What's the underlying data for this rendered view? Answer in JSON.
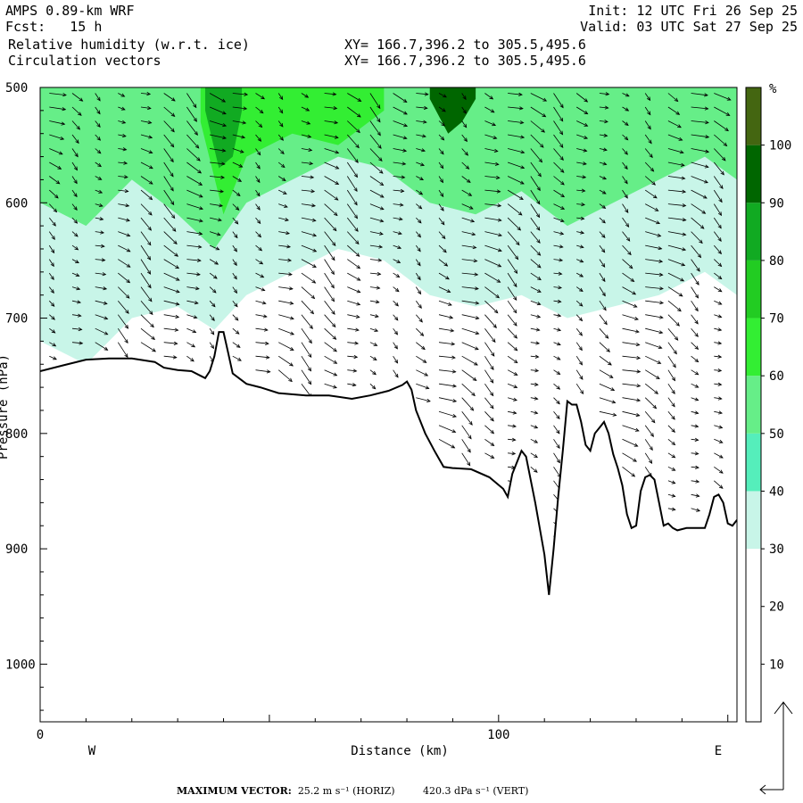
{
  "header": {
    "model": "AMPS 0.89-km WRF",
    "fcst": "Fcst:   15 h",
    "field1": "Relative humidity (w.r.t. ice)",
    "field2": "Circulation vectors",
    "init": "Init: 12 UTC Fri 26 Sep 25",
    "valid": "Valid: 03 UTC Sat 27 Sep 25",
    "xy1": "XY= 166.7,396.2 to 305.5,495.6",
    "xy2": "XY= 166.7,396.2 to 305.5,495.6"
  },
  "footer": {
    "max_vector_label": "MAXIMUM VECTOR:",
    "horiz": "25.2 m s⁻¹ (HORIZ)",
    "vert": "420.3 dPa s⁻¹ (VERT)"
  },
  "chart_data": {
    "type": "heatmap",
    "title": "Relative humidity (w.r.t. ice)",
    "xlabel": "Distance (km)",
    "ylabel": "Pressure (hPa)",
    "xlim": [
      0,
      152
    ],
    "ylim": [
      1050,
      500
    ],
    "x_ticks": [
      "0",
      "100"
    ],
    "x_end_labels": {
      "left": "W",
      "right": "E"
    },
    "y_ticks": [
      "500",
      "600",
      "700",
      "800",
      "900",
      "1000"
    ],
    "colorbar": {
      "unit": "%",
      "levels": [
        0,
        10,
        20,
        30,
        40,
        50,
        60,
        70,
        80,
        90,
        100
      ],
      "tick_labels": [
        "10",
        "20",
        "30",
        "40",
        "50",
        "60",
        "70",
        "80",
        "90",
        "100"
      ],
      "colors": [
        "#ffffff",
        "#ffffff",
        "#ffffff",
        "#c8f5e8",
        "#55eebb",
        "#66ee88",
        "#33ee33",
        "#22cc22",
        "#11aa22",
        "#006600",
        "#446611"
      ]
    },
    "terrain_pressure": [
      [
        0,
        746
      ],
      [
        5,
        741
      ],
      [
        10,
        736
      ],
      [
        15,
        735
      ],
      [
        20,
        735
      ],
      [
        25,
        738
      ],
      [
        27,
        743
      ],
      [
        30,
        745
      ],
      [
        33,
        746
      ],
      [
        35,
        750
      ],
      [
        36,
        752
      ],
      [
        37,
        746
      ],
      [
        38,
        733
      ],
      [
        39,
        712
      ],
      [
        40,
        712
      ],
      [
        41,
        730
      ],
      [
        42,
        748
      ],
      [
        45,
        757
      ],
      [
        48,
        760
      ],
      [
        52,
        765
      ],
      [
        58,
        767
      ],
      [
        63,
        767
      ],
      [
        68,
        770
      ],
      [
        72,
        767
      ],
      [
        76,
        763
      ],
      [
        79,
        758
      ],
      [
        80,
        755
      ],
      [
        81,
        762
      ],
      [
        82,
        780
      ],
      [
        84,
        800
      ],
      [
        86,
        815
      ],
      [
        88,
        829
      ],
      [
        90,
        830
      ],
      [
        94,
        831
      ],
      [
        98,
        838
      ],
      [
        101,
        848
      ],
      [
        102,
        855
      ],
      [
        103,
        835
      ],
      [
        105,
        815
      ],
      [
        106,
        820
      ],
      [
        108,
        860
      ],
      [
        110,
        905
      ],
      [
        111,
        940
      ],
      [
        112,
        900
      ],
      [
        113,
        855
      ],
      [
        114,
        815
      ],
      [
        115,
        772
      ],
      [
        116,
        775
      ],
      [
        117,
        775
      ],
      [
        118,
        790
      ],
      [
        119,
        810
      ],
      [
        120,
        815
      ],
      [
        121,
        800
      ],
      [
        122,
        795
      ],
      [
        123,
        790
      ],
      [
        124,
        800
      ],
      [
        125,
        818
      ],
      [
        126,
        830
      ],
      [
        127,
        845
      ],
      [
        128,
        870
      ],
      [
        129,
        882
      ],
      [
        130,
        880
      ],
      [
        131,
        850
      ],
      [
        132,
        838
      ],
      [
        133,
        836
      ],
      [
        134,
        840
      ],
      [
        135,
        860
      ],
      [
        136,
        880
      ],
      [
        137,
        878
      ],
      [
        138,
        882
      ],
      [
        139,
        884
      ],
      [
        141,
        882
      ],
      [
        143,
        882
      ],
      [
        145,
        882
      ],
      [
        146,
        870
      ],
      [
        147,
        855
      ],
      [
        148,
        853
      ],
      [
        149,
        860
      ],
      [
        150,
        878
      ],
      [
        151,
        880
      ],
      [
        152,
        875
      ]
    ],
    "rh_bands": [
      {
        "level": 40,
        "x": [
          0,
          152
        ],
        "top": 500,
        "bottom_profile": [
          [
            0,
            650
          ],
          [
            10,
            660
          ],
          [
            20,
            640
          ],
          [
            30,
            660
          ],
          [
            38,
            680
          ],
          [
            45,
            650
          ],
          [
            55,
            640
          ],
          [
            65,
            600
          ],
          [
            75,
            610
          ],
          [
            85,
            620
          ],
          [
            95,
            650
          ],
          [
            105,
            640
          ],
          [
            115,
            670
          ],
          [
            125,
            650
          ],
          [
            135,
            640
          ],
          [
            145,
            600
          ],
          [
            152,
            620
          ]
        ]
      },
      {
        "level": 30,
        "x": [
          0,
          152
        ],
        "top": 500,
        "bottom_profile": [
          [
            0,
            720
          ],
          [
            10,
            740
          ],
          [
            20,
            700
          ],
          [
            30,
            690
          ],
          [
            38,
            710
          ],
          [
            45,
            680
          ],
          [
            55,
            660
          ],
          [
            65,
            640
          ],
          [
            75,
            650
          ],
          [
            85,
            680
          ],
          [
            95,
            690
          ],
          [
            105,
            680
          ],
          [
            115,
            700
          ],
          [
            125,
            690
          ],
          [
            135,
            680
          ],
          [
            145,
            660
          ],
          [
            152,
            680
          ]
        ]
      },
      {
        "level": 50,
        "x": [
          0,
          152
        ],
        "top": 500,
        "bottom_profile": [
          [
            0,
            600
          ],
          [
            10,
            620
          ],
          [
            20,
            580
          ],
          [
            30,
            610
          ],
          [
            38,
            640
          ],
          [
            45,
            600
          ],
          [
            55,
            580
          ],
          [
            65,
            560
          ],
          [
            75,
            570
          ],
          [
            85,
            600
          ],
          [
            95,
            610
          ],
          [
            105,
            590
          ],
          [
            115,
            620
          ],
          [
            125,
            600
          ],
          [
            135,
            580
          ],
          [
            145,
            560
          ],
          [
            152,
            580
          ]
        ]
      },
      {
        "level": 60,
        "x": [
          35,
          75
        ],
        "top": 500,
        "bottom_profile": [
          [
            35,
            530
          ],
          [
            40,
            610
          ],
          [
            45,
            560
          ],
          [
            55,
            540
          ],
          [
            65,
            550
          ],
          [
            75,
            520
          ]
        ]
      },
      {
        "level": 80,
        "x": [
          36,
          44
        ],
        "top": 500,
        "bottom_profile": [
          [
            36,
            520
          ],
          [
            39,
            570
          ],
          [
            42,
            560
          ],
          [
            44,
            520
          ]
        ]
      },
      {
        "level": 90,
        "x": [
          85,
          95
        ],
        "top": 500,
        "bottom_profile": [
          [
            85,
            510
          ],
          [
            89,
            540
          ],
          [
            92,
            530
          ],
          [
            95,
            510
          ]
        ]
      }
    ],
    "max_vector": {
      "horiz_m_s": 25.2,
      "vert_dPa_s": 420.3
    }
  }
}
